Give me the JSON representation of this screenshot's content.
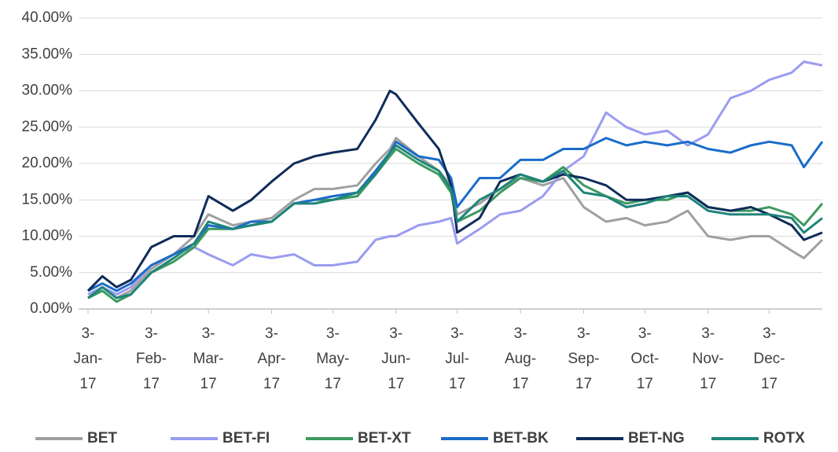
{
  "chart_data": {
    "type": "line",
    "x": [
      "2017-01-03",
      "2017-01-10",
      "2017-01-17",
      "2017-01-24",
      "2017-02-03",
      "2017-02-14",
      "2017-02-24",
      "2017-03-03",
      "2017-03-15",
      "2017-03-24",
      "2017-04-03",
      "2017-04-14",
      "2017-04-24",
      "2017-05-03",
      "2017-05-15",
      "2017-05-24",
      "2017-05-31",
      "2017-06-03",
      "2017-06-14",
      "2017-06-24",
      "2017-06-30",
      "2017-07-03",
      "2017-07-14",
      "2017-07-24",
      "2017-08-03",
      "2017-08-14",
      "2017-08-24",
      "2017-09-03",
      "2017-09-14",
      "2017-09-24",
      "2017-10-03",
      "2017-10-14",
      "2017-10-24",
      "2017-11-03",
      "2017-11-14",
      "2017-11-24",
      "2017-12-03",
      "2017-12-14",
      "2017-12-20",
      "2017-12-29"
    ],
    "series": [
      {
        "name": "BET",
        "color": "#a0a0a0",
        "values": [
          1.5,
          3,
          1.5,
          2.5,
          5.5,
          7.5,
          10,
          13,
          11.5,
          12,
          12.5,
          15,
          16.5,
          16.5,
          17,
          20,
          22,
          23.5,
          21,
          19,
          17,
          13,
          14.5,
          16.5,
          18,
          17,
          18,
          14,
          12,
          12.5,
          11.5,
          12,
          13.5,
          10,
          9.5,
          10,
          10,
          8,
          7,
          9.5
        ]
      },
      {
        "name": "BET-FI",
        "color": "#9a9cf0",
        "values": [
          2,
          3,
          2,
          3,
          6,
          7.5,
          8.5,
          7.5,
          6,
          7.5,
          7,
          7.5,
          6,
          6,
          6.5,
          9.5,
          10,
          10,
          11.5,
          12,
          12.5,
          9,
          11,
          13,
          13.5,
          15.5,
          19,
          21,
          27,
          25,
          24,
          24.5,
          22.5,
          24,
          29,
          30,
          31.5,
          32.5,
          34,
          33.5
        ]
      },
      {
        "name": "BET-XT",
        "color": "#3d9a60",
        "values": [
          1.5,
          2.5,
          1,
          2,
          5,
          6.5,
          8.5,
          11,
          11,
          11.5,
          12,
          14.5,
          15,
          15,
          15.5,
          18.5,
          21,
          22,
          20,
          18.5,
          16,
          12,
          13.5,
          16,
          18,
          17.5,
          19.5,
          17,
          15.5,
          14.5,
          15,
          15,
          16,
          14,
          13.5,
          13.5,
          14,
          13,
          11.5,
          14.5
        ]
      },
      {
        "name": "BET-BK",
        "color": "#1a6cc8",
        "values": [
          2.5,
          3.5,
          2.5,
          3.5,
          6,
          7.5,
          9,
          11.5,
          11,
          12,
          12,
          14.5,
          15,
          15.5,
          16,
          19,
          21.5,
          23,
          21,
          20.5,
          18,
          14,
          18,
          18,
          20.5,
          20.5,
          22,
          22,
          23.5,
          22.5,
          23,
          22.5,
          23,
          22,
          21.5,
          22.5,
          23,
          22.5,
          19.5,
          23
        ]
      },
      {
        "name": "BET-NG",
        "color": "#0f2c5a",
        "values": [
          2.5,
          4.5,
          3,
          4,
          8.5,
          10,
          10,
          15.5,
          13.5,
          15,
          17.5,
          20,
          21,
          21.5,
          22,
          26,
          30,
          29.5,
          25.5,
          22,
          17,
          10.5,
          12.5,
          17.5,
          18.5,
          17.5,
          18.5,
          18,
          17,
          15,
          15,
          15.5,
          16,
          14,
          13.5,
          14,
          13,
          11.5,
          9.5,
          10.5
        ]
      },
      {
        "name": "ROTX",
        "color": "#1f857a",
        "values": [
          1.5,
          3,
          1.5,
          2,
          5,
          7,
          9,
          12,
          11,
          11.5,
          12,
          14.5,
          14.5,
          15,
          16,
          18.5,
          21.5,
          22.5,
          20.5,
          19,
          16.5,
          12,
          15,
          16.5,
          18.5,
          17.5,
          19,
          16,
          15.5,
          14,
          14.5,
          15.5,
          15.5,
          13.5,
          13,
          13,
          13,
          12.5,
          10.5,
          12.5
        ]
      }
    ],
    "xlim": [
      "2017-01-03",
      "2017-12-29"
    ],
    "xticks": [
      {
        "value": "2017-01-03",
        "label": "3-Jan-17"
      },
      {
        "value": "2017-02-03",
        "label": "3-Feb-17"
      },
      {
        "value": "2017-03-03",
        "label": "3-Mar-17"
      },
      {
        "value": "2017-04-03",
        "label": "3-Apr-17"
      },
      {
        "value": "2017-05-03",
        "label": "3-May-17"
      },
      {
        "value": "2017-06-03",
        "label": "3-Jun-17"
      },
      {
        "value": "2017-07-03",
        "label": "3-Jul-17"
      },
      {
        "value": "2017-08-03",
        "label": "3-Aug-17"
      },
      {
        "value": "2017-09-03",
        "label": "3-Sep-17"
      },
      {
        "value": "2017-10-03",
        "label": "3-Oct-17"
      },
      {
        "value": "2017-11-03",
        "label": "3-Nov-17"
      },
      {
        "value": "2017-12-03",
        "label": "3-Dec-17"
      }
    ],
    "ylim": [
      0,
      40
    ],
    "yticks": [
      {
        "value": 0,
        "label": "0.00%"
      },
      {
        "value": 5,
        "label": "5.00%"
      },
      {
        "value": 10,
        "label": "10.00%"
      },
      {
        "value": 15,
        "label": "15.00%"
      },
      {
        "value": 20,
        "label": "20.00%"
      },
      {
        "value": 25,
        "label": "25.00%"
      },
      {
        "value": 30,
        "label": "30.00%"
      },
      {
        "value": 35,
        "label": "35.00%"
      },
      {
        "value": 40,
        "label": "40.00%"
      }
    ],
    "grid": true,
    "legend": "bottom"
  }
}
